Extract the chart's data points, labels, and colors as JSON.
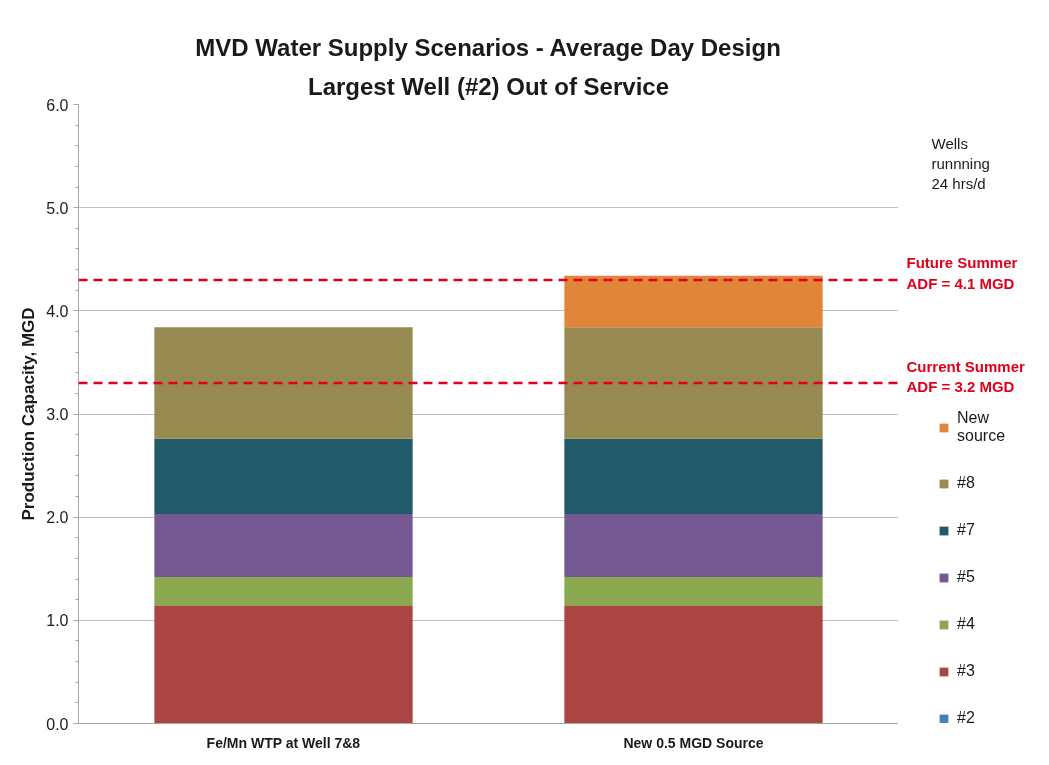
{
  "chart_data": {
    "type": "bar",
    "title": "MVD Water Supply Scenarios - Average Day Design",
    "subtitle": "Largest Well (#2) Out of Service",
    "ylabel": "Production Capacity, MGD",
    "categories": [
      "Fe/Mn WTP at Well 7&8",
      "New 0.5 MGD Source"
    ],
    "stacked": true,
    "series": [
      {
        "name": "#2",
        "color": "#4a7ebb",
        "values": [
          0,
          0
        ]
      },
      {
        "name": "#3",
        "color": "#ab4544",
        "values": [
          1.14,
          1.14
        ]
      },
      {
        "name": "#4",
        "color": "#8aa84f",
        "values": [
          0.28,
          0.28
        ]
      },
      {
        "name": "#5",
        "color": "#735892",
        "values": [
          0.61,
          0.61
        ]
      },
      {
        "name": "#7",
        "color": "#215a69",
        "values": [
          0.73,
          0.73
        ]
      },
      {
        "name": "#8",
        "color": "#968a51",
        "values": [
          1.08,
          1.08
        ]
      },
      {
        "name": "New source",
        "color": "#e0853a",
        "values": [
          null,
          0.5
        ]
      }
    ],
    "ylim": [
      0,
      6
    ],
    "yticks": [
      {
        "value": 0,
        "label": "0.0"
      },
      {
        "value": 1,
        "label": "1.0"
      },
      {
        "value": 2,
        "label": "2.0"
      },
      {
        "value": 3,
        "label": "3.0"
      },
      {
        "value": 4,
        "label": "4.0"
      },
      {
        "value": 5,
        "label": "5.0"
      },
      {
        "value": 6,
        "label": "6.0"
      }
    ],
    "grid": "y",
    "legend": "right",
    "ref_lines": [
      {
        "axis": "y",
        "value": 4.3,
        "color": "#e0001a",
        "line_style": "dashed"
      },
      {
        "axis": "y",
        "value": 3.3,
        "color": "#e0001a",
        "line_style": "dashed"
      }
    ],
    "annotations": [
      "Wells runnning 24 hrs/d",
      "Future  Summer ADF = 4.1 MGD",
      "Current Summer ADF = 3.2 MGD"
    ]
  }
}
